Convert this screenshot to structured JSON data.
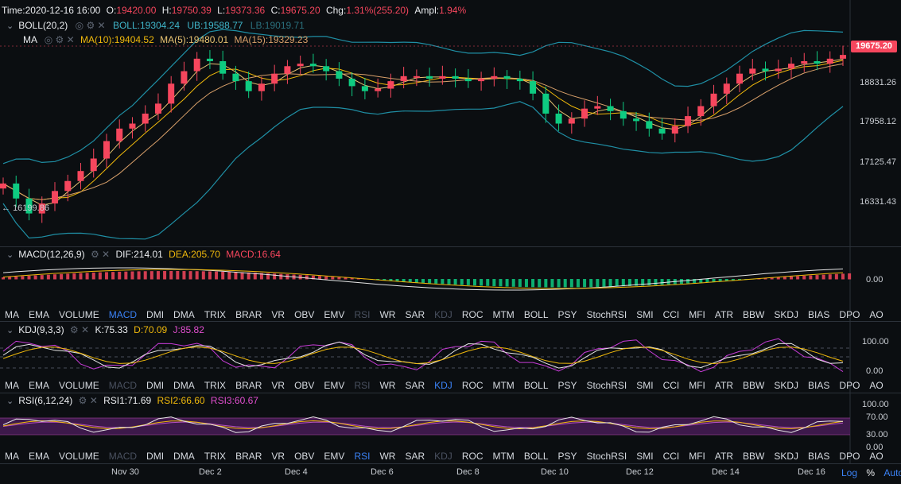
{
  "colors": {
    "up": "#f6465d",
    "down": "#0ecb81",
    "ma5": "#e8c372",
    "ma10": "#f0b90b",
    "ma15": "#d9a06a",
    "boll": "#1f8fa5",
    "dif": "#e6e6e6",
    "dea": "#f0b90b",
    "k": "#e6e6e6",
    "d": "#f0b90b",
    "j": "#c63bd6",
    "rsi_band": "#4a1d5a"
  },
  "header": {
    "time_label": "Time:",
    "time": "2020-12-16 16:00",
    "o_label": "O:",
    "o": "19420.00",
    "h_label": "H:",
    "h": "19750.39",
    "l_label": "L:",
    "l": "19373.36",
    "c_label": "C:",
    "c": "19675.20",
    "chg_label": "Chg:",
    "chg": "1.31%(255.20)",
    "ampl_label": "Ampl:",
    "ampl": "1.94%"
  },
  "boll": {
    "name": "BOLL(20,2)",
    "mid": "BOLL:19304.24",
    "ub": "UB:19588.77",
    "lb": "LB:19019.71"
  },
  "ma": {
    "name": "MA",
    "ma10": "MA(10):19404.52",
    "ma5": "MA(5):19480.01",
    "ma15": "MA(15):19329.23"
  },
  "macd": {
    "name": "MACD(12,26,9)",
    "dif": "DIF:214.01",
    "dea": "DEA:205.70",
    "macd": "MACD:16.64"
  },
  "kdj": {
    "name": "KDJ(9,3,3)",
    "k": "K:75.33",
    "d": "D:70.09",
    "j": "J:85.82"
  },
  "rsi": {
    "name": "RSI(6,12,24)",
    "r1": "RSI1:71.69",
    "r2": "RSI2:66.60",
    "r3": "RSI3:60.67"
  },
  "indicator_menu": [
    "MA",
    "EMA",
    "VOLUME",
    "MACD",
    "DMI",
    "DMA",
    "TRIX",
    "BRAR",
    "VR",
    "OBV",
    "EMV",
    "RSI",
    "WR",
    "SAR",
    "KDJ",
    "ROC",
    "MTM",
    "BOLL",
    "PSY",
    "StochRSI",
    "SMI",
    "CCI",
    "MFI",
    "ATR",
    "BBW",
    "SKDJ",
    "BIAS",
    "DPO",
    "AO"
  ],
  "price_axis": [
    "19675.20",
    "18831.26",
    "17958.12",
    "17125.47",
    "16331.43"
  ],
  "macd_axis": [
    "0.00"
  ],
  "kdj_axis": [
    "100.00",
    "0.00"
  ],
  "rsi_axis": [
    "100.00",
    "70.00",
    "30.00",
    "0.00"
  ],
  "low_marker": "16199.86",
  "time_axis": [
    "Nov 30",
    "Dec 2",
    "Dec 4",
    "Dec 6",
    "Dec 8",
    "Dec 10",
    "Dec 12",
    "Dec 14",
    "Dec 16"
  ],
  "scale_buttons": [
    "Log",
    "%",
    "Auto"
  ],
  "chart_data": {
    "type": "candlestick",
    "symbol_interval": "4h",
    "x": [
      "Nov 30",
      "Dec 2",
      "Dec 4",
      "Dec 6",
      "Dec 8",
      "Dec 10",
      "Dec 12",
      "Dec 14",
      "Dec 16"
    ],
    "price_ticks": [
      19675.2,
      18831.26,
      17958.12,
      17125.47,
      16331.43
    ],
    "last_close": 19675.2,
    "marked_low": 16199.86,
    "close_path": [
      17100,
      16800,
      16500,
      16700,
      16950,
      17150,
      17350,
      17600,
      17950,
      18200,
      18300,
      18500,
      18700,
      19100,
      19350,
      19600,
      19550,
      19300,
      19150,
      18950,
      19100,
      19300,
      19450,
      19500,
      19450,
      19350,
      19200,
      19050,
      18950,
      19000,
      19150,
      19250,
      19250,
      19200,
      19250,
      19200,
      19150,
      19200,
      19250,
      19200,
      19150,
      18900,
      18500,
      18300,
      18400,
      18600,
      18650,
      18550,
      18400,
      18350,
      18200,
      18100,
      18250,
      18450,
      18650,
      18900,
      19100,
      19300,
      19400,
      19350,
      19400,
      19500,
      19550,
      19500,
      19600,
      19675
    ],
    "macd_axis": [
      0.0
    ],
    "kdj_axis": [
      100.0,
      0.0
    ],
    "rsi_axis": [
      100.0,
      70.0,
      30.0,
      0.0
    ]
  }
}
